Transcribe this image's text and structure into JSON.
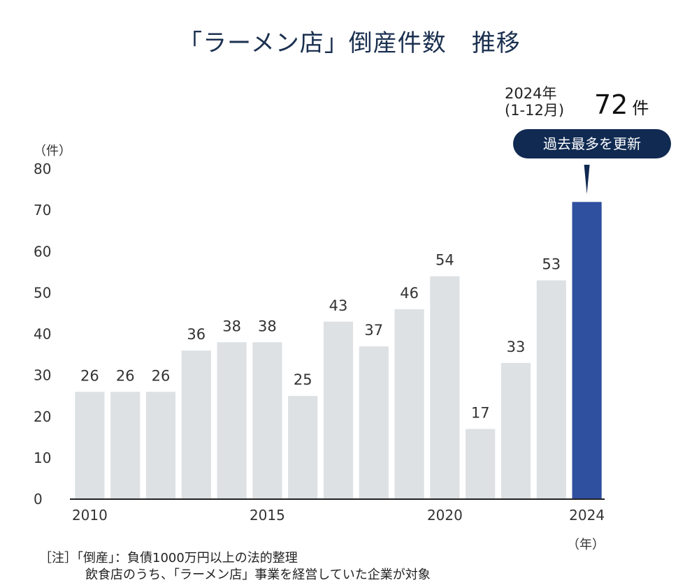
{
  "chart_data": {
    "type": "bar",
    "title": "「ラーメン店」倒産件数",
    "title_suffix": "推移",
    "ylabel": "（件）",
    "ylim": [
      0,
      80
    ],
    "yticks": [
      0,
      10,
      20,
      30,
      40,
      50,
      60,
      70,
      80
    ],
    "categories": [
      2010,
      2011,
      2012,
      2013,
      2014,
      2015,
      2016,
      2017,
      2018,
      2019,
      2020,
      2021,
      2022,
      2023,
      2024
    ],
    "values": [
      26,
      26,
      26,
      36,
      38,
      38,
      25,
      43,
      37,
      46,
      54,
      17,
      33,
      53,
      72
    ],
    "xtick_labels": [
      {
        "year": 2010,
        "label": "2010"
      },
      {
        "year": 2015,
        "label": "2015"
      },
      {
        "year": 2020,
        "label": "2020"
      },
      {
        "year": 2024,
        "label": "2024"
      }
    ],
    "xlabel": "（年）",
    "bar_color": "#dde1e4",
    "highlight_color": "#2f4f9f",
    "highlight_category": 2024,
    "grid": false,
    "callout": {
      "period_line1": "2024年",
      "period_line2": "(1-12月)",
      "value": "72",
      "unit": "件",
      "badge": "過去最多を更新"
    }
  },
  "notes": {
    "line1": "［注］「倒産」：負債1000万円以上の法的整理",
    "line2": "飲食店のうち、「ラーメン店」事業を経営していた企業が対象"
  }
}
